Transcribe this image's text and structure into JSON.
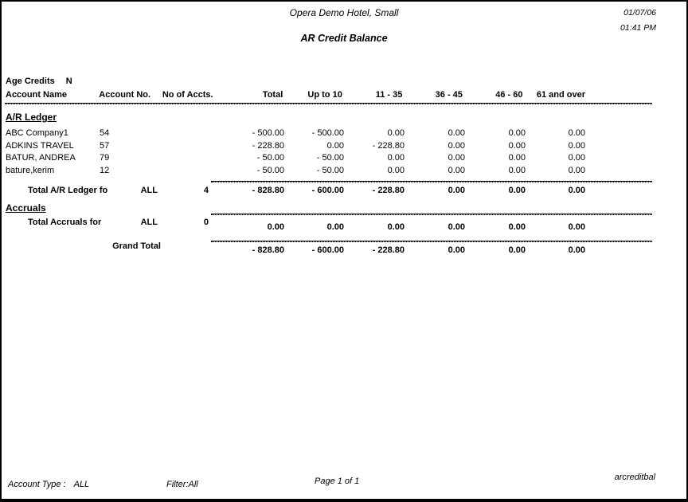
{
  "header": {
    "hotel_name": "Opera Demo Hotel, Small",
    "report_title": "AR Credit Balance",
    "date": "01/07/06",
    "time": "01:41 PM"
  },
  "filters": {
    "age_credits_label": "Age Credits",
    "age_credits_value": "N"
  },
  "table": {
    "headers": [
      "Account Name",
      "Account No.",
      "No of Accts.",
      "Total",
      "Up to 10",
      "11 - 35",
      "36 - 45",
      "46 - 60",
      "61 and over"
    ],
    "section_ar": "A/R Ledger",
    "rows": [
      {
        "name": "ABC Company1",
        "acct": "54",
        "total": "- 500.00",
        "u10": "- 500.00",
        "a11_35": "0.00",
        "a36_45": "0.00",
        "a46_60": "0.00",
        "a61": "0.00"
      },
      {
        "name": "ADKINS TRAVEL",
        "acct": "57",
        "total": "- 228.80",
        "u10": "0.00",
        "a11_35": "- 228.80",
        "a36_45": "0.00",
        "a46_60": "0.00",
        "a61": "0.00"
      },
      {
        "name": "BATUR, ANDREA",
        "acct": "79",
        "total": "- 50.00",
        "u10": "- 50.00",
        "a11_35": "0.00",
        "a36_45": "0.00",
        "a46_60": "0.00",
        "a61": "0.00"
      },
      {
        "name": "bature,kerim",
        "acct": "12",
        "total": "- 50.00",
        "u10": "- 50.00",
        "a11_35": "0.00",
        "a36_45": "0.00",
        "a46_60": "0.00",
        "a61": "0.00"
      }
    ],
    "ar_total": {
      "label": "Total A/R Ledger fo",
      "acct": "ALL",
      "cnt": "4",
      "total": "- 828.80",
      "u10": "- 600.00",
      "a11_35": "- 228.80",
      "a36_45": "0.00",
      "a46_60": "0.00",
      "a61": "0.00"
    },
    "section_accruals": "Accruals",
    "accruals_total": {
      "label": "Total Accruals for",
      "acct": "ALL",
      "cnt": "0",
      "total": "0.00",
      "u10": "0.00",
      "a11_35": "0.00",
      "a36_45": "0.00",
      "a46_60": "0.00",
      "a61": "0.00"
    },
    "grand_total": {
      "label": "Grand Total",
      "total": "- 828.80",
      "u10": "- 600.00",
      "a11_35": "- 228.80",
      "a36_45": "0.00",
      "a46_60": "0.00",
      "a61": "0.00"
    }
  },
  "footer": {
    "account_type_label": "Account Type :",
    "account_type_value": "ALL",
    "filter": "Filter:All",
    "page_info": "Page 1 of 1",
    "report_id": "arcreditbal"
  }
}
